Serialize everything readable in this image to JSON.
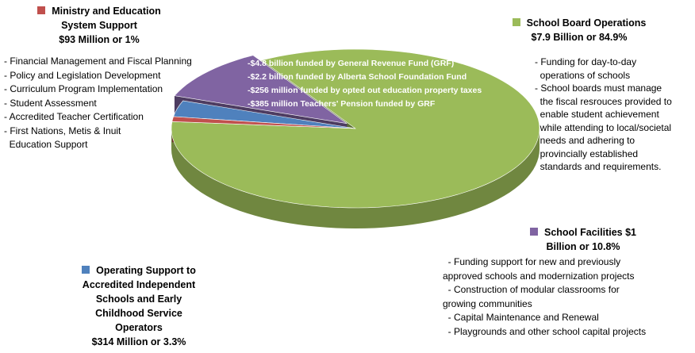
{
  "chart_data": {
    "type": "pie",
    "title": "",
    "slices": [
      {
        "name": "School Board Operations",
        "amount": "$7.9 Billion or 84.9%",
        "value": 84.9,
        "color": "#9bbb59",
        "items": [
          "- Funding for day-to-day",
          "  operations of schools",
          "- School boards must manage",
          "  the fiscal resrouces provided to",
          "  enable student achievement",
          "  while attending to local/societal",
          "  needs and adhering to",
          "  provincially established",
          "  standards and requirements."
        ],
        "funding_sources": [
          "-$4.8 billion funded by General Revenue Fund (GRF)",
          "-$2.2 billion funded by Alberta School Foundation Fund",
          "-$256 million funded by opted out education property taxes",
          "-$385 million Teachers' Pension funded by GRF"
        ]
      },
      {
        "name": "School Facilities $1",
        "amount": "Billion or 10.8%",
        "value": 10.8,
        "color": "#8064a2",
        "items": [
          "  - Funding support for new and previously",
          "approved schools and modernization projects",
          "  - Construction of modular classrooms for",
          "growing communities",
          "  - Capital Maintenance and Renewal",
          "  - Playgrounds and other school capital projects"
        ]
      },
      {
        "name_lines": [
          "Operating Support to",
          "Accredited Independent",
          "Schools and Early",
          "Childhood Service",
          "Operators"
        ],
        "amount": "$314 Million or 3.3%",
        "value": 3.3,
        "color": "#4f81bd"
      },
      {
        "name_lines": [
          "Ministry and Education",
          "System Support"
        ],
        "amount": "$93 Million or 1%",
        "value": 1.0,
        "color": "#c0504d",
        "items": [
          "- Financial Management and Fiscal Planning",
          "- Policy and Legislation Development",
          "- Curriculum Program Implementation",
          "- Student Assessment",
          "- Accredited Teacher Certification",
          "- First Nations, Metis & Inuit",
          "  Education Support"
        ]
      }
    ]
  }
}
